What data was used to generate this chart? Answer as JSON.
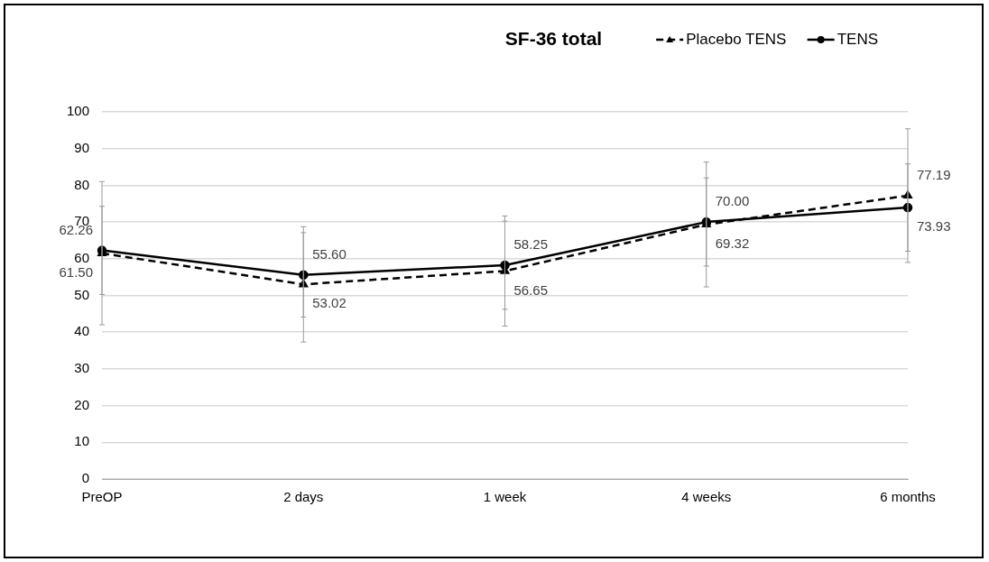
{
  "chart_data": {
    "type": "line",
    "title": "SF-36 total",
    "categories": [
      "PreOP",
      "2 days",
      "1 week",
      "4 weeks",
      "6 months"
    ],
    "series": [
      {
        "name": "Placebo TENS",
        "color": "#000000",
        "marker": "triangle",
        "line_style": "dashed",
        "values": [
          61.5,
          53.02,
          56.65,
          69.32,
          77.19
        ],
        "value_labels": [
          "61.50",
          "53.02",
          "56.65",
          "69.32",
          "77.19"
        ],
        "errors": [
          19.5,
          15.7,
          15,
          17,
          18.2
        ]
      },
      {
        "name": "TENS",
        "color": "#000000",
        "marker": "circle",
        "line_style": "solid",
        "values": [
          62.26,
          55.6,
          58.25,
          70.0,
          73.93
        ],
        "value_labels": [
          "62.26",
          "55.60",
          "58.25",
          "70.00",
          "73.93"
        ],
        "errors": [
          12,
          11.5,
          12,
          12,
          11.9
        ]
      }
    ],
    "ylim": [
      0,
      100
    ],
    "yticks": [
      0,
      10,
      20,
      30,
      40,
      50,
      60,
      70,
      80,
      90,
      100
    ],
    "grid": "y",
    "legend": "top right"
  }
}
